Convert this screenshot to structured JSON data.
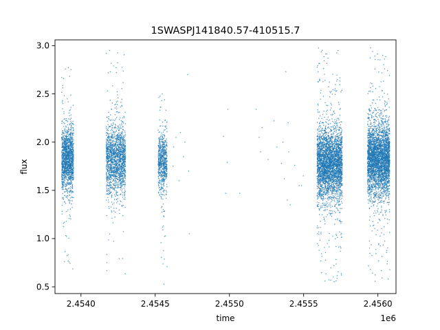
{
  "chart_data": {
    "type": "scatter",
    "title": "1SWASPJ141840.57-410515.7",
    "xlabel": "time",
    "ylabel": "flux",
    "x_offset_label": "1e6",
    "xlim": [
      2453825,
      2456122
    ],
    "ylim": [
      0.43,
      3.06
    ],
    "x_ticks": [
      {
        "value": 2454000,
        "label": "2.4540"
      },
      {
        "value": 2454500,
        "label": "2.4545"
      },
      {
        "value": 2455000,
        "label": "2.4550"
      },
      {
        "value": 2455500,
        "label": "2.4555"
      },
      {
        "value": 2456000,
        "label": "2.4560"
      }
    ],
    "y_ticks": [
      {
        "value": 0.5,
        "label": "0.5"
      },
      {
        "value": 1.0,
        "label": "1.0"
      },
      {
        "value": 1.5,
        "label": "1.5"
      },
      {
        "value": 2.0,
        "label": "2.0"
      },
      {
        "value": 2.5,
        "label": "2.5"
      },
      {
        "value": 3.0,
        "label": "3.0"
      }
    ],
    "grid": false,
    "marker_color": "#1f77b4",
    "observing_seasons": [
      {
        "start": 2453870,
        "end": 2453950,
        "center_flux": 1.82,
        "spread": 0.16,
        "min_flux": 0.55,
        "max_flux": 2.9,
        "approx_points": 1500
      },
      {
        "start": 2454170,
        "end": 2454300,
        "center_flux": 1.82,
        "spread": 0.17,
        "min_flux": 0.6,
        "max_flux": 3.0,
        "approx_points": 1700
      },
      {
        "start": 2454520,
        "end": 2454580,
        "center_flux": 1.8,
        "spread": 0.14,
        "min_flux": 0.5,
        "max_flux": 2.5,
        "approx_points": 700
      },
      {
        "start": 2455590,
        "end": 2455760,
        "center_flux": 1.78,
        "spread": 0.18,
        "min_flux": 0.55,
        "max_flux": 3.0,
        "approx_points": 3400
      },
      {
        "start": 2455930,
        "end": 2456080,
        "center_flux": 1.82,
        "spread": 0.18,
        "min_flux": 0.55,
        "max_flux": 3.0,
        "approx_points": 3400
      }
    ],
    "sparse_points": [
      [
        2454620,
        1.75
      ],
      [
        2454625,
        1.95
      ],
      [
        2454640,
        2.05
      ],
      [
        2454660,
        1.6
      ],
      [
        2454670,
        2.1
      ],
      [
        2454690,
        1.85
      ],
      [
        2454700,
        2.0
      ],
      [
        2454718,
        2.7
      ],
      [
        2454725,
        1.7
      ],
      [
        2454730,
        1.05
      ],
      [
        2454960,
        2.06
      ],
      [
        2454975,
        1.47
      ],
      [
        2454985,
        1.79
      ],
      [
        2454990,
        2.34
      ],
      [
        2455070,
        1.47
      ],
      [
        2455180,
        2.34
      ],
      [
        2455200,
        2.05
      ],
      [
        2455210,
        1.9
      ],
      [
        2455220,
        2.15
      ],
      [
        2455260,
        1.82
      ],
      [
        2455300,
        2.22
      ],
      [
        2455320,
        1.95
      ],
      [
        2455350,
        1.78
      ],
      [
        2455360,
        2.0
      ],
      [
        2455370,
        1.62
      ],
      [
        2455380,
        2.73
      ],
      [
        2455390,
        1.4
      ],
      [
        2455395,
        2.2
      ],
      [
        2455400,
        1.9
      ],
      [
        2455410,
        1.35
      ],
      [
        2455440,
        1.76
      ],
      [
        2455470,
        1.55
      ],
      [
        2455485,
        1.55
      ],
      [
        2455498,
        1.65
      ]
    ]
  }
}
